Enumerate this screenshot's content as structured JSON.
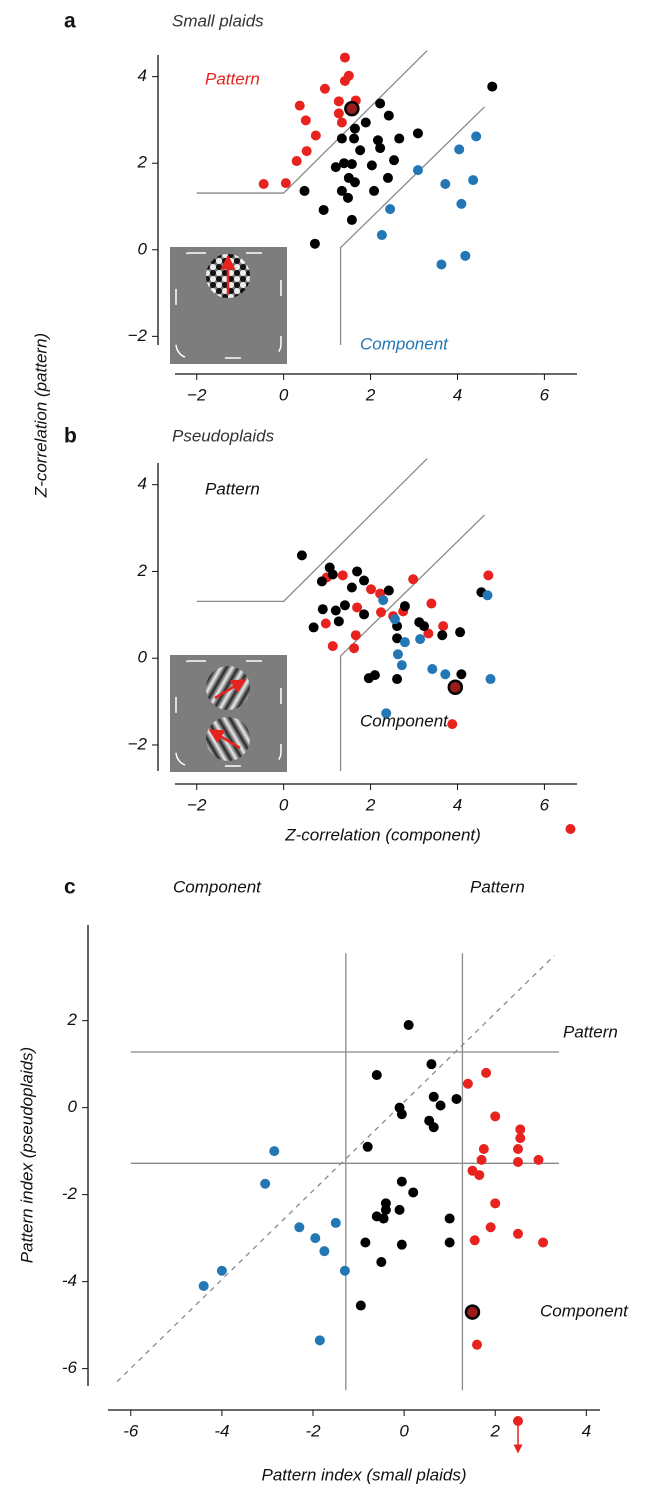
{
  "chart_data": [
    {
      "type": "scatter",
      "panel_label": "a",
      "title": "Small plaids",
      "ylabel": "Z-correlation (pattern)",
      "annotations": [
        "Pattern",
        "Component"
      ],
      "xlim": [
        -2.5,
        6.75
      ],
      "ylim": [
        -2.2,
        4.5
      ],
      "xticks": [
        {
          "value": -2,
          "label": "−2"
        },
        0,
        2,
        4,
        6
      ],
      "yticks": [
        {
          "value": -2,
          "label": "−2"
        },
        0,
        2,
        4
      ],
      "boundaries": [
        [
          [
            -2,
            1.31
          ],
          [
            0,
            1.31
          ],
          [
            3.3,
            4.6
          ]
        ],
        [
          [
            1.31,
            -2.2
          ],
          [
            1.31,
            0.05
          ],
          [
            4.62,
            3.3
          ]
        ]
      ],
      "series": [
        {
          "color": "#e8231f",
          "x": [
            1.41,
            1.5,
            1.41,
            0.37,
            1.27,
            1.66,
            0.95,
            1.27,
            0.51,
            1.34,
            0.74,
            0.53,
            0.3,
            -0.46,
            0.05
          ],
          "y": [
            4.44,
            4.02,
            3.9,
            3.33,
            3.43,
            3.45,
            3.72,
            3.15,
            2.99,
            2.94,
            2.64,
            2.28,
            2.05,
            1.52,
            1.54
          ]
        },
        {
          "color": "#000000",
          "x": [
            2.22,
            4.8,
            2.42,
            1.89,
            3.09,
            1.64,
            1.34,
            2.66,
            1.62,
            2.17,
            1.76,
            2.22,
            2.54,
            1.39,
            1.2,
            1.57,
            2.03,
            1.5,
            1.64,
            1.34,
            2.08,
            0.48,
            2.4,
            1.48,
            0.92,
            1.57,
            0.72
          ],
          "y": [
            3.38,
            3.77,
            3.1,
            2.94,
            2.69,
            2.8,
            2.57,
            2.57,
            2.57,
            2.53,
            2.3,
            2.35,
            2.07,
            2.0,
            1.91,
            1.98,
            1.95,
            1.66,
            1.56,
            1.36,
            1.36,
            1.36,
            1.66,
            1.2,
            0.92,
            0.69,
            0.14
          ]
        },
        {
          "color": "#2277b4",
          "x": [
            4.43,
            4.04,
            3.09,
            3.72,
            4.36,
            4.09,
            2.45,
            2.26,
            4.18,
            3.63
          ],
          "y": [
            2.62,
            2.32,
            1.84,
            1.52,
            1.61,
            1.06,
            0.94,
            0.34,
            -0.14,
            -0.34
          ]
        }
      ],
      "highlight": {
        "x": 1.57,
        "y": 3.26
      }
    },
    {
      "type": "scatter",
      "panel_label": "b",
      "title": "Pseudoplaids",
      "xlabel": "Z-correlation (component)",
      "annotations": [
        "Pattern",
        "Component"
      ],
      "xlim": [
        -2.5,
        6.75
      ],
      "ylim": [
        -2.6,
        4.5
      ],
      "xticks": [
        {
          "value": -2,
          "label": "−2"
        },
        0,
        2,
        4,
        6
      ],
      "yticks": [
        {
          "value": -2,
          "label": "−2"
        },
        0,
        2,
        4
      ],
      "boundaries": [
        [
          [
            -2,
            1.31
          ],
          [
            0,
            1.31
          ],
          [
            3.3,
            4.6
          ]
        ],
        [
          [
            1.31,
            -2.6
          ],
          [
            1.31,
            0.05
          ],
          [
            4.62,
            3.3
          ]
        ]
      ],
      "series": [
        {
          "color": "#e8231f",
          "x": [
            0.99,
            1.36,
            2.01,
            2.22,
            2.98,
            3.4,
            4.71,
            2.24,
            0.97,
            1.69,
            1.66,
            1.13,
            1.62,
            2.75,
            3.33,
            3.67,
            2.52,
            3.88
          ],
          "y": [
            1.86,
            1.91,
            1.59,
            1.49,
            1.82,
            1.26,
            1.91,
            1.06,
            0.8,
            1.17,
            0.53,
            0.28,
            0.23,
            1.08,
            0.57,
            0.74,
            0.97,
            -1.52
          ]
        },
        {
          "color": "#000000",
          "x": [
            0.42,
            1.06,
            1.13,
            1.69,
            1.57,
            0.88,
            1.41,
            1.85,
            2.42,
            2.79,
            0.9,
            1.2,
            1.85,
            0.69,
            1.27,
            2.61,
            3.12,
            3.23,
            3.65,
            4.06,
            4.55,
            2.61,
            2.1,
            1.96,
            2.61,
            4.09
          ],
          "y": [
            2.37,
            2.09,
            1.93,
            2.0,
            1.63,
            1.77,
            1.22,
            1.79,
            1.56,
            1.2,
            1.13,
            1.1,
            1.01,
            0.71,
            0.85,
            0.74,
            0.83,
            0.74,
            0.53,
            0.6,
            1.52,
            0.46,
            -0.39,
            -0.46,
            -0.48,
            -0.37
          ]
        },
        {
          "color": "#2277b4",
          "x": [
            2.29,
            2.56,
            4.69,
            3.14,
            2.79,
            2.63,
            2.72,
            3.42,
            3.72,
            4.76,
            2.36
          ],
          "y": [
            1.34,
            0.9,
            1.45,
            0.44,
            0.37,
            0.09,
            -0.16,
            -0.25,
            -0.37,
            -0.48,
            -1.27
          ]
        }
      ],
      "highlight": {
        "x": 3.95,
        "y": -0.67
      },
      "below_range": {
        "x": 6.6,
        "color": "#e8231f"
      }
    },
    {
      "type": "scatter",
      "panel_label": "c",
      "xlabel": "Pattern index (small plaids)",
      "ylabel": "Pattern index (pseudoplaids)",
      "annotations": [
        "Component",
        "Pattern",
        "Pattern",
        "Component"
      ],
      "xlim": [
        -6.5,
        4.3
      ],
      "ylim": [
        -6.4,
        4.2
      ],
      "xticks": [
        -6,
        -4,
        -2,
        0,
        2,
        4
      ],
      "yticks": [
        -6,
        -4,
        -2,
        0,
        2
      ],
      "boundaries": [
        [
          [
            -1.28,
            -6.5
          ],
          [
            -1.28,
            3.55
          ]
        ],
        [
          [
            1.28,
            -6.5
          ],
          [
            1.28,
            3.55
          ]
        ],
        [
          [
            -6,
            1.28
          ],
          [
            3.4,
            1.28
          ]
        ],
        [
          [
            -6,
            -1.28
          ],
          [
            3.4,
            -1.28
          ]
        ]
      ],
      "diagonal": [
        [
          -6.3,
          -6.3
        ],
        [
          3.3,
          3.5
        ]
      ],
      "series": [
        {
          "color": "#e8231f",
          "x": [
            1.4,
            1.8,
            2.0,
            2.55,
            2.55,
            1.75,
            2.5,
            1.7,
            2.5,
            2.95,
            1.5,
            1.65,
            2.0,
            1.9,
            1.55,
            2.5,
            3.05,
            1.6
          ],
          "y": [
            0.55,
            0.8,
            -0.2,
            -0.5,
            -0.7,
            -0.95,
            -0.95,
            -1.2,
            -1.25,
            -1.2,
            -1.45,
            -1.55,
            -2.2,
            -2.75,
            -3.05,
            -2.9,
            -3.1,
            -5.45
          ]
        },
        {
          "color": "#000000",
          "x": [
            0.1,
            0.6,
            -0.6,
            0.65,
            1.15,
            0.8,
            -0.1,
            -0.05,
            0.55,
            0.65,
            -0.8,
            -0.05,
            0.2,
            -0.4,
            -0.4,
            -0.1,
            -0.6,
            -0.45,
            1.0,
            -0.85,
            -0.05,
            1.0,
            -0.5,
            -0.95
          ],
          "y": [
            1.9,
            1.0,
            0.75,
            0.25,
            0.2,
            0.05,
            0,
            -0.15,
            -0.3,
            -0.45,
            -0.9,
            -1.7,
            -1.95,
            -2.2,
            -2.35,
            -2.35,
            -2.5,
            -2.55,
            -2.55,
            -3.1,
            -3.15,
            -3.1,
            -3.55,
            -4.55
          ]
        },
        {
          "color": "#2277b4",
          "x": [
            -2.85,
            -3.05,
            -2.3,
            -1.95,
            -1.5,
            -1.75,
            -1.3,
            -4.0,
            -4.4,
            -1.85
          ],
          "y": [
            -1.0,
            -1.75,
            -2.75,
            -3.0,
            -2.65,
            -3.3,
            -3.75,
            -3.75,
            -4.1,
            -5.35
          ]
        }
      ],
      "highlight": {
        "x": 1.5,
        "y": -4.7
      },
      "below_range": {
        "x": 2.5,
        "color": "#e8231f"
      }
    }
  ]
}
